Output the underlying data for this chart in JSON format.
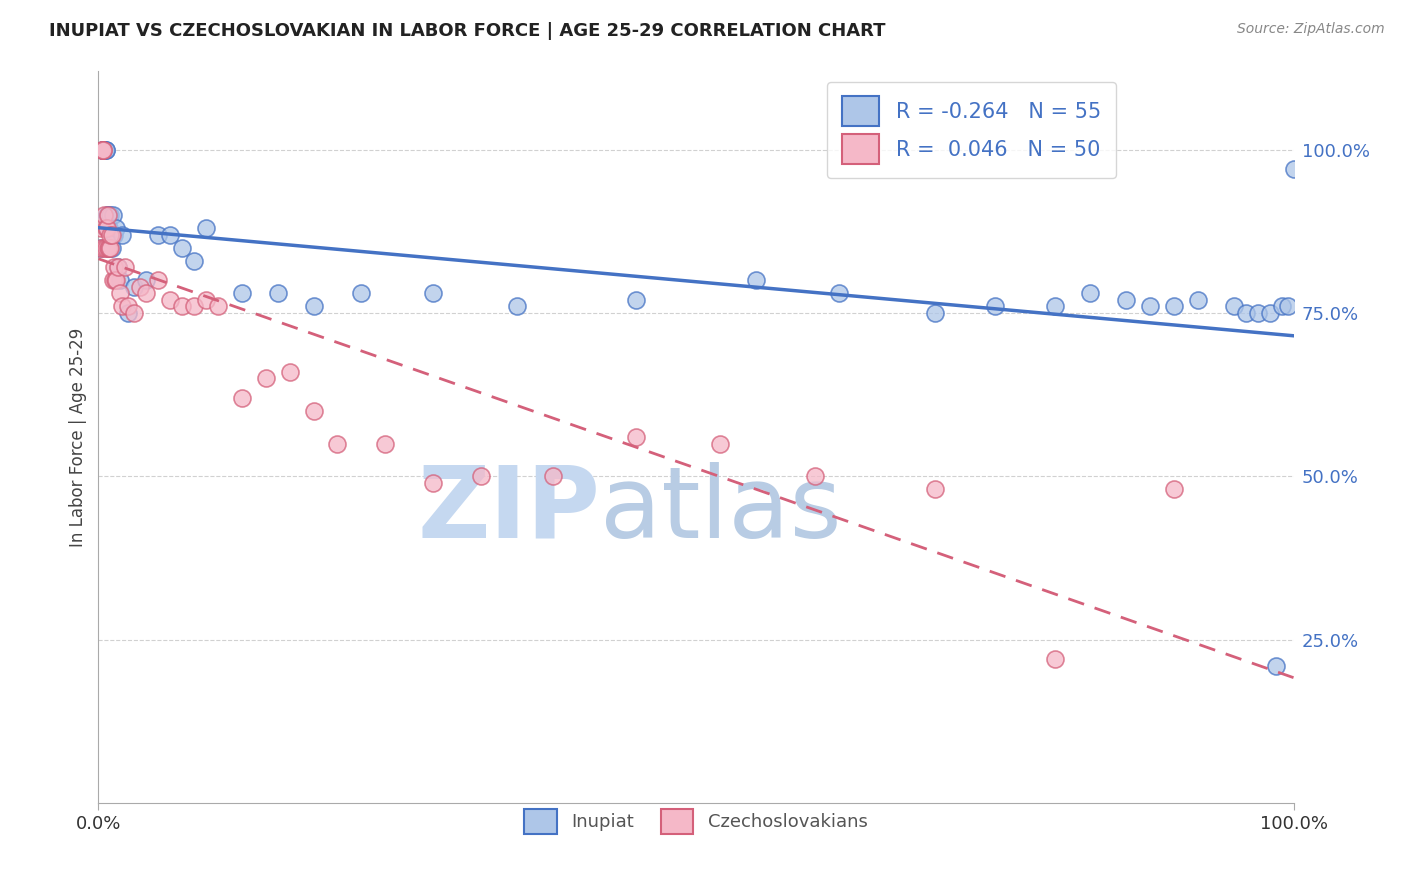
{
  "title": "INUPIAT VS CZECHOSLOVAKIAN IN LABOR FORCE | AGE 25-29 CORRELATION CHART",
  "source": "Source: ZipAtlas.com",
  "ylabel": "In Labor Force | Age 25-29",
  "legend_r_blue": "-0.264",
  "legend_n_blue": "55",
  "legend_r_pink": "0.046",
  "legend_n_pink": "50",
  "blue_color": "#aec6e8",
  "pink_color": "#f5b8c8",
  "blue_edge_color": "#4472c4",
  "pink_edge_color": "#d4607a",
  "blue_line_color": "#4472c4",
  "pink_line_color": "#d4607a",
  "background_color": "#ffffff",
  "grid_color": "#cccccc",
  "zip_color": "#c8daf0",
  "atlas_color": "#b8cce4",
  "bottom_labels": [
    "Inupiat",
    "Czechoslovakians"
  ],
  "blue_scatter_x": [
    0.002,
    0.003,
    0.004,
    0.004,
    0.005,
    0.005,
    0.006,
    0.006,
    0.007,
    0.007,
    0.008,
    0.008,
    0.009,
    0.01,
    0.01,
    0.011,
    0.012,
    0.013,
    0.015,
    0.016,
    0.018,
    0.02,
    0.025,
    0.03,
    0.04,
    0.05,
    0.06,
    0.07,
    0.08,
    0.09,
    0.12,
    0.15,
    0.18,
    0.22,
    0.28,
    0.35,
    0.45,
    0.55,
    0.62,
    0.7,
    0.75,
    0.8,
    0.83,
    0.86,
    0.88,
    0.9,
    0.92,
    0.95,
    0.96,
    0.97,
    0.98,
    0.985,
    0.99,
    0.995,
    1.0
  ],
  "blue_scatter_y": [
    0.85,
    1.0,
    1.0,
    1.0,
    1.0,
    1.0,
    1.0,
    1.0,
    0.9,
    0.88,
    0.9,
    0.85,
    0.88,
    0.9,
    0.85,
    0.85,
    0.9,
    0.87,
    0.88,
    0.82,
    0.8,
    0.87,
    0.75,
    0.79,
    0.8,
    0.87,
    0.87,
    0.85,
    0.83,
    0.88,
    0.78,
    0.78,
    0.76,
    0.78,
    0.78,
    0.76,
    0.77,
    0.8,
    0.78,
    0.75,
    0.76,
    0.76,
    0.78,
    0.77,
    0.76,
    0.76,
    0.77,
    0.76,
    0.75,
    0.75,
    0.75,
    0.21,
    0.76,
    0.76,
    0.97
  ],
  "pink_scatter_x": [
    0.002,
    0.002,
    0.003,
    0.003,
    0.004,
    0.004,
    0.005,
    0.005,
    0.006,
    0.006,
    0.007,
    0.008,
    0.008,
    0.009,
    0.01,
    0.01,
    0.011,
    0.012,
    0.013,
    0.014,
    0.015,
    0.016,
    0.018,
    0.02,
    0.022,
    0.025,
    0.03,
    0.035,
    0.04,
    0.05,
    0.06,
    0.07,
    0.08,
    0.09,
    0.1,
    0.12,
    0.14,
    0.16,
    0.18,
    0.2,
    0.24,
    0.28,
    0.32,
    0.38,
    0.45,
    0.52,
    0.6,
    0.7,
    0.8,
    0.9
  ],
  "pink_scatter_y": [
    0.85,
    0.88,
    1.0,
    1.0,
    1.0,
    1.0,
    0.85,
    0.9,
    0.88,
    0.85,
    0.88,
    0.9,
    0.85,
    0.85,
    0.85,
    0.87,
    0.87,
    0.8,
    0.82,
    0.8,
    0.8,
    0.82,
    0.78,
    0.76,
    0.82,
    0.76,
    0.75,
    0.79,
    0.78,
    0.8,
    0.77,
    0.76,
    0.76,
    0.77,
    0.76,
    0.62,
    0.65,
    0.66,
    0.6,
    0.55,
    0.55,
    0.49,
    0.5,
    0.5,
    0.56,
    0.55,
    0.5,
    0.48,
    0.22,
    0.48
  ]
}
